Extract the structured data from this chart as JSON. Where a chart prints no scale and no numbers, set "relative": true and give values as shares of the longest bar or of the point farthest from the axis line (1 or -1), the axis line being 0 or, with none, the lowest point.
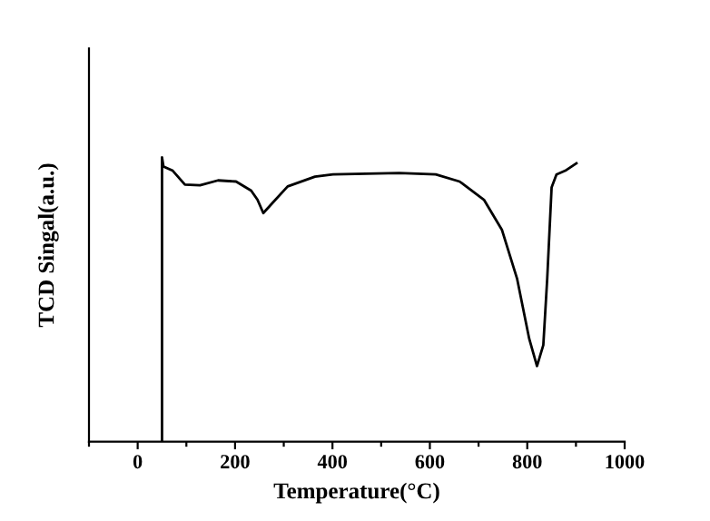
{
  "chart_data": {
    "type": "line",
    "relative": true,
    "xlabel": "Temperature(°C)",
    "ylabel": "TCD Singal(a.u.)",
    "xlim": [
      -100,
      1000
    ],
    "xticks": [
      0,
      200,
      400,
      600,
      800,
      1000
    ],
    "grid": false,
    "legend": false,
    "marker": "none",
    "line_style": "solid",
    "x": [
      50,
      50,
      53,
      72,
      97,
      128,
      165,
      202,
      233,
      246,
      258,
      277,
      308,
      364,
      401,
      537,
      612,
      661,
      711,
      748,
      779,
      804,
      820,
      833,
      841,
      850,
      860,
      878,
      901
    ],
    "series": [
      {
        "color": "#000000",
        "values": [
          0,
          1.0,
          0.968,
          0.953,
          0.904,
          0.902,
          0.919,
          0.915,
          0.883,
          0.851,
          0.804,
          0.84,
          0.898,
          0.932,
          0.94,
          0.945,
          0.94,
          0.915,
          0.851,
          0.745,
          0.574,
          0.362,
          0.266,
          0.34,
          0.574,
          0.894,
          0.94,
          0.953,
          0.979
        ]
      }
    ]
  }
}
